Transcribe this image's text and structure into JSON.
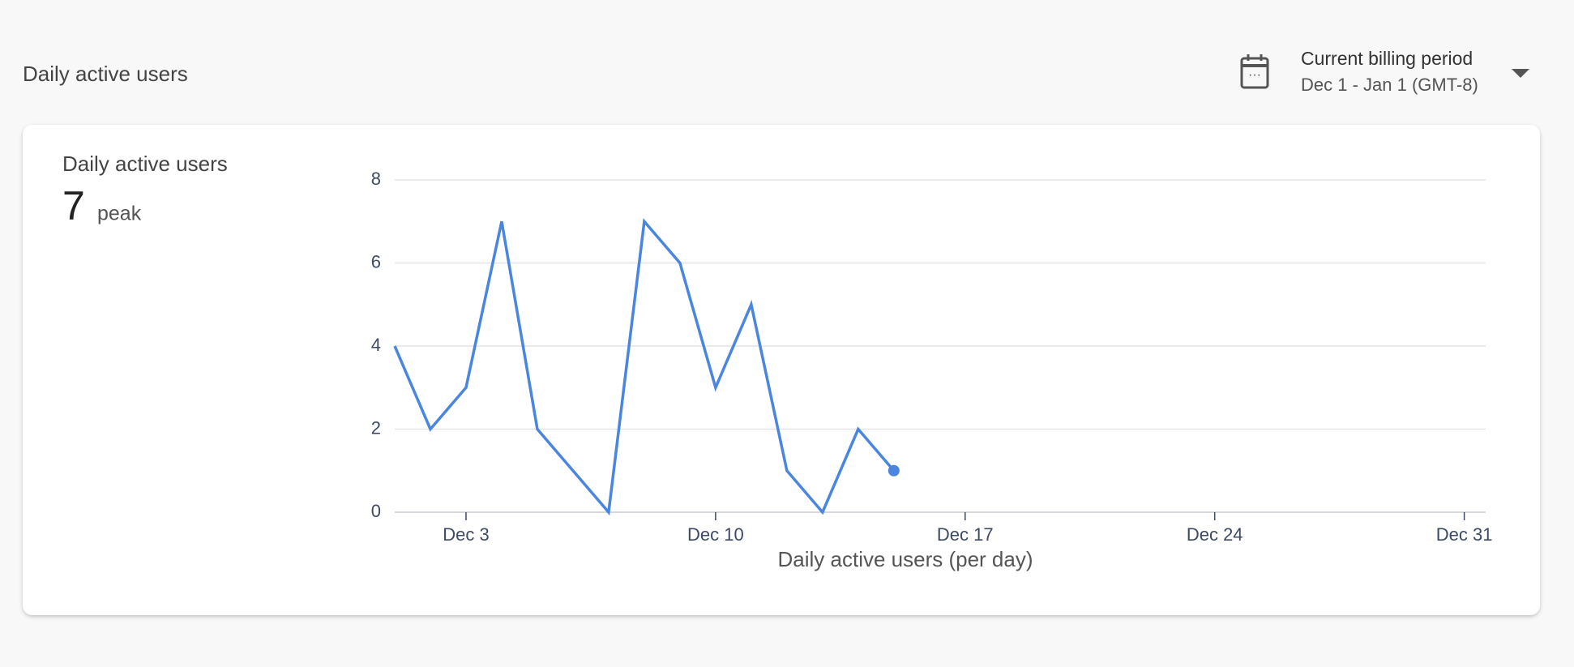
{
  "header": {
    "title": "Daily active users",
    "period_label": "Current billing period",
    "period_range": "Dec 1 - Jan 1 (GMT-8)"
  },
  "chart_data": {
    "type": "line",
    "title": "Daily active users",
    "summary_value": 7,
    "summary_label": "peak",
    "xlabel": "Daily active users (per day)",
    "x": [
      1,
      2,
      3,
      4,
      5,
      6,
      7,
      8,
      9,
      10,
      11,
      12,
      13,
      14,
      15
    ],
    "series": [
      {
        "name": "Daily active users",
        "color": "#4a86e0",
        "values": [
          4,
          2,
          3,
          7,
          2,
          1,
          0,
          7,
          6,
          3,
          5,
          1,
          0,
          2,
          1
        ]
      }
    ],
    "xlim": [
      1,
      31.6
    ],
    "xticks": [
      {
        "value": 3,
        "label": "Dec 3"
      },
      {
        "value": 10,
        "label": "Dec 10"
      },
      {
        "value": 17,
        "label": "Dec 17"
      },
      {
        "value": 24,
        "label": "Dec 24"
      },
      {
        "value": 31,
        "label": "Dec 31"
      }
    ],
    "ylim": [
      0,
      8
    ],
    "yticks": [
      0,
      2,
      4,
      6,
      8
    ],
    "grid": true
  }
}
